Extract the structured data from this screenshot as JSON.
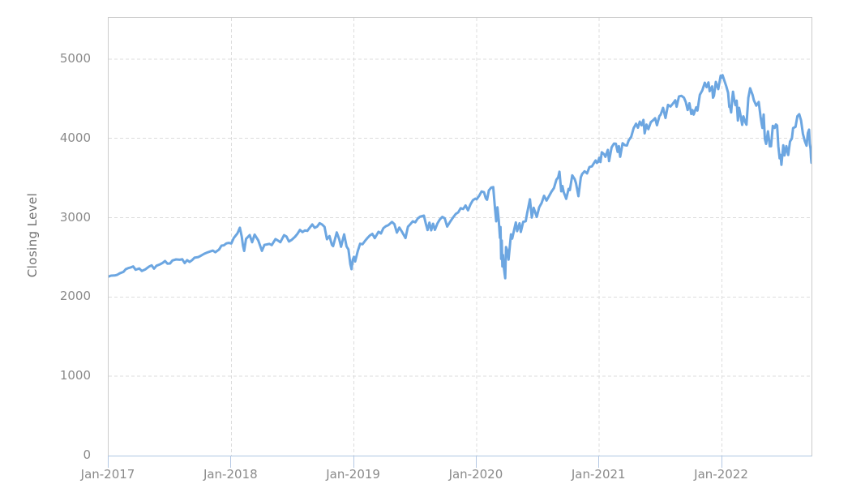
{
  "chart_data": {
    "type": "line",
    "title": "",
    "xlabel": "",
    "ylabel": "Closing Level",
    "series_name": "Closing Level",
    "x_unit": "years_since_Jan-2017",
    "xlim": [
      0,
      5.73
    ],
    "ylim": [
      0,
      5520
    ],
    "grid": "dashed",
    "legend": "none",
    "yticks": [
      {
        "value": 0,
        "label": "0"
      },
      {
        "value": 1000,
        "label": "1000"
      },
      {
        "value": 2000,
        "label": "2000"
      },
      {
        "value": 3000,
        "label": "3000"
      },
      {
        "value": 4000,
        "label": "4000"
      },
      {
        "value": 5000,
        "label": "5000"
      }
    ],
    "xticks": [
      {
        "value": 0,
        "label": "Jan-2017"
      },
      {
        "value": 1,
        "label": "Jan-2018"
      },
      {
        "value": 2,
        "label": "Jan-2019"
      },
      {
        "value": 3,
        "label": "Jan-2020"
      },
      {
        "value": 4,
        "label": "Jan-2021"
      },
      {
        "value": 5,
        "label": "Jan-2022"
      }
    ],
    "points": [
      [
        0.0,
        2258
      ],
      [
        0.02,
        2269
      ],
      [
        0.05,
        2271
      ],
      [
        0.07,
        2280
      ],
      [
        0.09,
        2298
      ],
      [
        0.12,
        2316
      ],
      [
        0.14,
        2351
      ],
      [
        0.16,
        2364
      ],
      [
        0.18,
        2373
      ],
      [
        0.2,
        2385
      ],
      [
        0.22,
        2344
      ],
      [
        0.25,
        2359
      ],
      [
        0.27,
        2329
      ],
      [
        0.3,
        2349
      ],
      [
        0.33,
        2384
      ],
      [
        0.35,
        2399
      ],
      [
        0.37,
        2357
      ],
      [
        0.39,
        2394
      ],
      [
        0.42,
        2412
      ],
      [
        0.44,
        2430
      ],
      [
        0.46,
        2453
      ],
      [
        0.48,
        2420
      ],
      [
        0.5,
        2423
      ],
      [
        0.52,
        2460
      ],
      [
        0.55,
        2474
      ],
      [
        0.58,
        2470
      ],
      [
        0.6,
        2476
      ],
      [
        0.62,
        2428
      ],
      [
        0.64,
        2465
      ],
      [
        0.66,
        2442
      ],
      [
        0.68,
        2465
      ],
      [
        0.7,
        2495
      ],
      [
        0.73,
        2503
      ],
      [
        0.75,
        2519
      ],
      [
        0.78,
        2545
      ],
      [
        0.8,
        2559
      ],
      [
        0.83,
        2575
      ],
      [
        0.85,
        2585
      ],
      [
        0.87,
        2565
      ],
      [
        0.9,
        2599
      ],
      [
        0.92,
        2648
      ],
      [
        0.94,
        2652
      ],
      [
        0.96,
        2676
      ],
      [
        0.98,
        2682
      ],
      [
        1.0,
        2674
      ],
      [
        1.02,
        2743
      ],
      [
        1.05,
        2803
      ],
      [
        1.07,
        2873
      ],
      [
        1.085,
        2762
      ],
      [
        1.095,
        2649
      ],
      [
        1.105,
        2581
      ],
      [
        1.12,
        2732
      ],
      [
        1.15,
        2780
      ],
      [
        1.17,
        2691
      ],
      [
        1.19,
        2787
      ],
      [
        1.22,
        2713
      ],
      [
        1.25,
        2582
      ],
      [
        1.27,
        2657
      ],
      [
        1.29,
        2663
      ],
      [
        1.31,
        2670
      ],
      [
        1.33,
        2655
      ],
      [
        1.36,
        2730
      ],
      [
        1.38,
        2712
      ],
      [
        1.4,
        2690
      ],
      [
        1.43,
        2779
      ],
      [
        1.45,
        2762
      ],
      [
        1.47,
        2700
      ],
      [
        1.49,
        2718
      ],
      [
        1.52,
        2760
      ],
      [
        1.54,
        2798
      ],
      [
        1.56,
        2846
      ],
      [
        1.58,
        2818
      ],
      [
        1.6,
        2840
      ],
      [
        1.62,
        2834
      ],
      [
        1.64,
        2875
      ],
      [
        1.66,
        2914
      ],
      [
        1.68,
        2872
      ],
      [
        1.7,
        2888
      ],
      [
        1.72,
        2931
      ],
      [
        1.74,
        2914
      ],
      [
        1.76,
        2885
      ],
      [
        1.78,
        2728
      ],
      [
        1.8,
        2768
      ],
      [
        1.82,
        2658
      ],
      [
        1.83,
        2641
      ],
      [
        1.86,
        2814
      ],
      [
        1.88,
        2726
      ],
      [
        1.895,
        2633
      ],
      [
        1.92,
        2790
      ],
      [
        1.94,
        2637
      ],
      [
        1.955,
        2600
      ],
      [
        1.97,
        2417
      ],
      [
        1.98,
        2351
      ],
      [
        1.99,
        2468
      ],
      [
        2.0,
        2507
      ],
      [
        2.01,
        2448
      ],
      [
        2.03,
        2575
      ],
      [
        2.05,
        2671
      ],
      [
        2.07,
        2665
      ],
      [
        2.09,
        2707
      ],
      [
        2.11,
        2745
      ],
      [
        2.13,
        2776
      ],
      [
        2.15,
        2796
      ],
      [
        2.17,
        2743
      ],
      [
        2.2,
        2822
      ],
      [
        2.22,
        2801
      ],
      [
        2.24,
        2867
      ],
      [
        2.26,
        2893
      ],
      [
        2.28,
        2906
      ],
      [
        2.31,
        2946
      ],
      [
        2.33,
        2918
      ],
      [
        2.35,
        2812
      ],
      [
        2.37,
        2876
      ],
      [
        2.39,
        2826
      ],
      [
        2.42,
        2744
      ],
      [
        2.44,
        2886
      ],
      [
        2.46,
        2918
      ],
      [
        2.48,
        2954
      ],
      [
        2.5,
        2942
      ],
      [
        2.52,
        2990
      ],
      [
        2.54,
        3014
      ],
      [
        2.57,
        3026
      ],
      [
        2.585,
        2932
      ],
      [
        2.6,
        2845
      ],
      [
        2.615,
        2938
      ],
      [
        2.63,
        2841
      ],
      [
        2.645,
        2924
      ],
      [
        2.66,
        2847
      ],
      [
        2.68,
        2926
      ],
      [
        2.7,
        2978
      ],
      [
        2.72,
        3010
      ],
      [
        2.74,
        2992
      ],
      [
        2.76,
        2888
      ],
      [
        2.78,
        2938
      ],
      [
        2.8,
        2986
      ],
      [
        2.83,
        3047
      ],
      [
        2.85,
        3067
      ],
      [
        2.87,
        3120
      ],
      [
        2.89,
        3110
      ],
      [
        2.91,
        3154
      ],
      [
        2.93,
        3093
      ],
      [
        2.95,
        3169
      ],
      [
        2.97,
        3221
      ],
      [
        2.99,
        3240
      ],
      [
        3.0,
        3231
      ],
      [
        3.02,
        3275
      ],
      [
        3.04,
        3330
      ],
      [
        3.06,
        3321
      ],
      [
        3.075,
        3244
      ],
      [
        3.085,
        3226
      ],
      [
        3.1,
        3346
      ],
      [
        3.12,
        3380
      ],
      [
        3.135,
        3386
      ],
      [
        3.15,
        3116
      ],
      [
        3.16,
        2954
      ],
      [
        3.17,
        3130
      ],
      [
        3.18,
        2972
      ],
      [
        3.19,
        2747
      ],
      [
        3.195,
        2882
      ],
      [
        3.2,
        2481
      ],
      [
        3.205,
        2711
      ],
      [
        3.21,
        2386
      ],
      [
        3.215,
        2529
      ],
      [
        3.22,
        2398
      ],
      [
        3.227,
        2305
      ],
      [
        3.233,
        2237
      ],
      [
        3.24,
        2630
      ],
      [
        3.25,
        2585
      ],
      [
        3.26,
        2471
      ],
      [
        3.28,
        2790
      ],
      [
        3.29,
        2737
      ],
      [
        3.31,
        2874
      ],
      [
        3.32,
        2940
      ],
      [
        3.33,
        2831
      ],
      [
        3.35,
        2930
      ],
      [
        3.36,
        2820
      ],
      [
        3.38,
        2948
      ],
      [
        3.4,
        2955
      ],
      [
        3.41,
        3044
      ],
      [
        3.435,
        3232
      ],
      [
        3.45,
        3002
      ],
      [
        3.465,
        3125
      ],
      [
        3.49,
        3009
      ],
      [
        3.51,
        3130
      ],
      [
        3.53,
        3185
      ],
      [
        3.55,
        3276
      ],
      [
        3.57,
        3216
      ],
      [
        3.59,
        3271
      ],
      [
        3.61,
        3327
      ],
      [
        3.63,
        3373
      ],
      [
        3.65,
        3478
      ],
      [
        3.665,
        3508
      ],
      [
        3.675,
        3580
      ],
      [
        3.69,
        3332
      ],
      [
        3.7,
        3399
      ],
      [
        3.71,
        3319
      ],
      [
        3.72,
        3281
      ],
      [
        3.73,
        3237
      ],
      [
        3.75,
        3363
      ],
      [
        3.76,
        3348
      ],
      [
        3.78,
        3534
      ],
      [
        3.8,
        3484
      ],
      [
        3.81,
        3435
      ],
      [
        3.83,
        3271
      ],
      [
        3.85,
        3510
      ],
      [
        3.86,
        3551
      ],
      [
        3.88,
        3585
      ],
      [
        3.9,
        3558
      ],
      [
        3.92,
        3638
      ],
      [
        3.94,
        3647
      ],
      [
        3.95,
        3673
      ],
      [
        3.97,
        3722
      ],
      [
        3.98,
        3690
      ],
      [
        3.99,
        3703
      ],
      [
        4.0,
        3756
      ],
      [
        4.01,
        3701
      ],
      [
        4.02,
        3825
      ],
      [
        4.04,
        3799
      ],
      [
        4.05,
        3768
      ],
      [
        4.07,
        3855
      ],
      [
        4.08,
        3714
      ],
      [
        4.1,
        3887
      ],
      [
        4.12,
        3935
      ],
      [
        4.135,
        3933
      ],
      [
        4.15,
        3829
      ],
      [
        4.16,
        3902
      ],
      [
        4.17,
        3768
      ],
      [
        4.19,
        3939
      ],
      [
        4.21,
        3913
      ],
      [
        4.225,
        3910
      ],
      [
        4.24,
        3975
      ],
      [
        4.26,
        4020
      ],
      [
        4.28,
        4129
      ],
      [
        4.3,
        4185
      ],
      [
        4.315,
        4135
      ],
      [
        4.33,
        4211
      ],
      [
        4.345,
        4165
      ],
      [
        4.36,
        4233
      ],
      [
        4.37,
        4063
      ],
      [
        4.385,
        4174
      ],
      [
        4.4,
        4116
      ],
      [
        4.42,
        4204
      ],
      [
        4.44,
        4230
      ],
      [
        4.455,
        4255
      ],
      [
        4.47,
        4166
      ],
      [
        4.49,
        4281
      ],
      [
        4.5,
        4298
      ],
      [
        4.52,
        4385
      ],
      [
        4.54,
        4258
      ],
      [
        4.56,
        4422
      ],
      [
        4.58,
        4402
      ],
      [
        4.6,
        4437
      ],
      [
        4.62,
        4480
      ],
      [
        4.63,
        4400
      ],
      [
        4.65,
        4529
      ],
      [
        4.67,
        4537
      ],
      [
        4.69,
        4514
      ],
      [
        4.705,
        4459
      ],
      [
        4.72,
        4358
      ],
      [
        4.735,
        4443
      ],
      [
        4.75,
        4308
      ],
      [
        4.76,
        4357
      ],
      [
        4.77,
        4300
      ],
      [
        4.79,
        4391
      ],
      [
        4.8,
        4351
      ],
      [
        4.82,
        4550
      ],
      [
        4.84,
        4605
      ],
      [
        4.86,
        4702
      ],
      [
        4.875,
        4646
      ],
      [
        4.89,
        4705
      ],
      [
        4.9,
        4595
      ],
      [
        4.92,
        4655
      ],
      [
        4.927,
        4513
      ],
      [
        4.935,
        4538
      ],
      [
        4.95,
        4712
      ],
      [
        4.97,
        4621
      ],
      [
        4.99,
        4791
      ],
      [
        5.0,
        4766
      ],
      [
        5.005,
        4797
      ],
      [
        5.02,
        4726
      ],
      [
        5.035,
        4659
      ],
      [
        5.05,
        4577
      ],
      [
        5.06,
        4398
      ],
      [
        5.065,
        4410
      ],
      [
        5.075,
        4327
      ],
      [
        5.085,
        4516
      ],
      [
        5.09,
        4589
      ],
      [
        5.1,
        4484
      ],
      [
        5.11,
        4419
      ],
      [
        5.12,
        4475
      ],
      [
        5.13,
        4226
      ],
      [
        5.14,
        4385
      ],
      [
        5.15,
        4306
      ],
      [
        5.165,
        4171
      ],
      [
        5.175,
        4278
      ],
      [
        5.19,
        4204
      ],
      [
        5.2,
        4173
      ],
      [
        5.215,
        4512
      ],
      [
        5.23,
        4632
      ],
      [
        5.25,
        4546
      ],
      [
        5.26,
        4481
      ],
      [
        5.28,
        4413
      ],
      [
        5.3,
        4459
      ],
      [
        5.315,
        4272
      ],
      [
        5.325,
        4175
      ],
      [
        5.33,
        4132
      ],
      [
        5.34,
        4300
      ],
      [
        5.35,
        3991
      ],
      [
        5.36,
        3930
      ],
      [
        5.375,
        4089
      ],
      [
        5.39,
        3901
      ],
      [
        5.4,
        3901
      ],
      [
        5.415,
        4158
      ],
      [
        5.43,
        4132
      ],
      [
        5.44,
        4176
      ],
      [
        5.45,
        4161
      ],
      [
        5.46,
        3901
      ],
      [
        5.47,
        3750
      ],
      [
        5.478,
        3790
      ],
      [
        5.485,
        3667
      ],
      [
        5.5,
        3912
      ],
      [
        5.51,
        3785
      ],
      [
        5.525,
        3902
      ],
      [
        5.54,
        3790
      ],
      [
        5.555,
        3960
      ],
      [
        5.57,
        3999
      ],
      [
        5.58,
        4130
      ],
      [
        5.6,
        4145
      ],
      [
        5.615,
        4280
      ],
      [
        5.63,
        4305
      ],
      [
        5.645,
        4228
      ],
      [
        5.66,
        4058
      ],
      [
        5.675,
        3967
      ],
      [
        5.69,
        3908
      ],
      [
        5.7,
        4067
      ],
      [
        5.71,
        4110
      ],
      [
        5.716,
        3933
      ],
      [
        5.722,
        3873
      ],
      [
        5.726,
        3758
      ],
      [
        5.73,
        3693
      ]
    ],
    "colors": {
      "line": "#6CA6E1",
      "grid": "#dcdcdc",
      "plot_border": "#cbcbcb",
      "axis_line": "#aec6e2",
      "tick": "#b4c8e4",
      "tick_label": "#8a8a8a",
      "axis_title": "#707070",
      "background": "#ffffff"
    }
  }
}
